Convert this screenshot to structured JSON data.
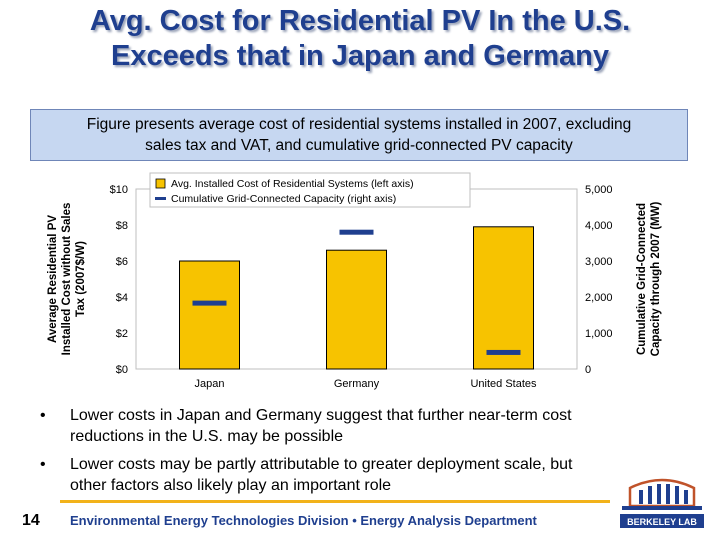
{
  "slide": {
    "title_line1": "Avg. Cost for Residential PV In the U.S.",
    "title_line2": "Exceeds that in Japan and Germany",
    "caption_line1": "Figure presents average cost of residential systems installed in 2007, excluding",
    "caption_line2": "sales tax and VAT, and cumulative grid-connected PV capacity",
    "bullets": [
      {
        "line1": "Lower costs in Japan and Germany suggest that further near-term cost",
        "line2": "reductions in the U.S. may be possible"
      },
      {
        "line1": "Lower costs may be partly attributable to greater deployment scale, but",
        "line2": "other factors also likely play an important role"
      }
    ],
    "bullet_symbol": "•",
    "page_number": "14",
    "footer_text": "Environmental Energy Technologies Division • Energy Analysis Department",
    "logo_text": "BERKELEY LAB",
    "accent_color": "#f2b21a",
    "title_color": "#1f3f8f"
  },
  "chart_data": {
    "type": "bar",
    "categories": [
      "Japan",
      "Germany",
      "United States"
    ],
    "series": [
      {
        "name": "Avg. Installed Cost of Residential Systems (left axis)",
        "values": [
          6.0,
          6.6,
          7.9
        ],
        "axis": "left",
        "color": "#f7c300"
      },
      {
        "name": "Cumulative Grid-Connected Capacity (right axis)",
        "values": [
          1830,
          3800,
          460
        ],
        "axis": "right",
        "color": "#1f3f8f"
      }
    ],
    "ylabel_lines": [
      "Average Residential PV",
      "Installed Cost without Sales",
      "Tax (2007$/W)"
    ],
    "y2label_lines": [
      "Cumulative Grid-Connected",
      "Capacity through 2007 (MW)"
    ],
    "ylim": [
      0,
      10
    ],
    "y2lim": [
      0,
      5000
    ],
    "yticks": [
      "$0",
      "$2",
      "$4",
      "$6",
      "$8",
      "$10"
    ],
    "y2ticks": [
      "0",
      "1,000",
      "2,000",
      "3,000",
      "4,000",
      "5,000"
    ],
    "legend_position": "top",
    "grid": false
  }
}
